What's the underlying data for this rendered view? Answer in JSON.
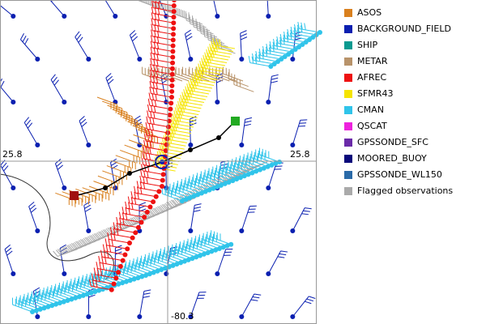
{
  "map": {
    "lat_label_left": "25.8",
    "lat_label_right": "25.8",
    "lon_label": "-80.3",
    "legend": [
      {
        "label": "ASOS",
        "color": "#d9801e"
      },
      {
        "label": "BACKGROUND_FIELD",
        "color": "#0a1fb0"
      },
      {
        "label": "SHIP",
        "color": "#0a9a90"
      },
      {
        "label": "METAR",
        "color": "#b8936a"
      },
      {
        "label": "AFREC",
        "color": "#ee1111"
      },
      {
        "label": "SFMR43",
        "color": "#f5e400"
      },
      {
        "label": "CMAN",
        "color": "#30c4ea"
      },
      {
        "label": "QSCAT",
        "color": "#ee22dd"
      },
      {
        "label": "GPSSONDE_SFC",
        "color": "#6a2aa8"
      },
      {
        "label": "MOORED_BUOY",
        "color": "#08087a"
      },
      {
        "label": "GPSSONDE_WL150",
        "color": "#2a6aa8"
      },
      {
        "label": "Flagged observations",
        "color": "#aaaaaa"
      }
    ]
  }
}
